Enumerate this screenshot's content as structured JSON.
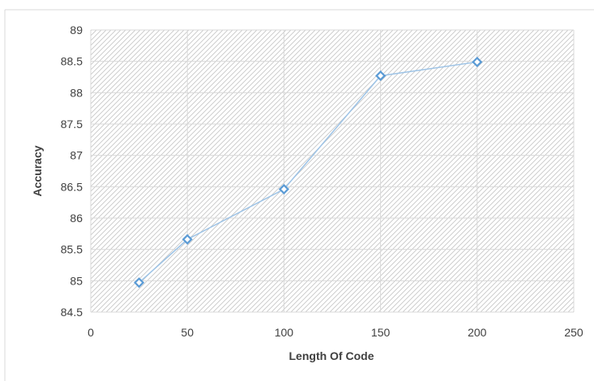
{
  "chart_data": {
    "type": "line",
    "title": "",
    "xlabel": "Length Of Code",
    "ylabel": "Accuracy",
    "xlim": [
      0,
      250
    ],
    "ylim": [
      84.5,
      89
    ],
    "x_ticks": [
      0,
      50,
      100,
      150,
      200,
      250
    ],
    "y_ticks": [
      84.5,
      85,
      85.5,
      86,
      86.5,
      87,
      87.5,
      88,
      88.5,
      89
    ],
    "grid": true,
    "plot_background": "diagonal-hatch",
    "series": [
      {
        "color": "#9dc3e6",
        "marker": "diamond",
        "marker_color": "#5b9bd5",
        "points": [
          {
            "x": 25,
            "y": 84.97
          },
          {
            "x": 50,
            "y": 85.66
          },
          {
            "x": 100,
            "y": 86.46
          },
          {
            "x": 150,
            "y": 88.27
          },
          {
            "x": 200,
            "y": 88.49
          }
        ]
      }
    ]
  }
}
